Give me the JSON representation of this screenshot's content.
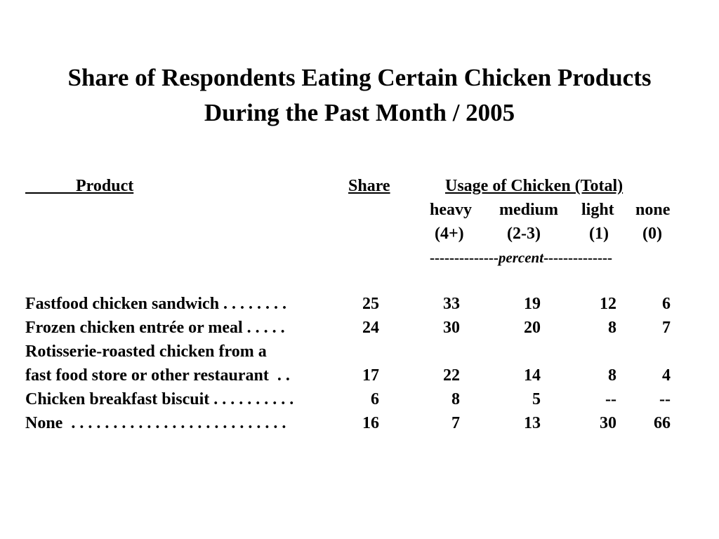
{
  "title": {
    "line1": "Share of Respondents Eating Certain Chicken Products",
    "line2": "During the Past Month / 2005"
  },
  "headers": {
    "product": "            Product",
    "share": "Share",
    "usage": "Usage of Chicken (Total)",
    "cols": [
      {
        "name": "heavy",
        "range": "(4+)"
      },
      {
        "name": "medium",
        "range": "(2-3)"
      },
      {
        "name": "light",
        "range": "(1)"
      },
      {
        "name": "none",
        "range": "(0)"
      }
    ],
    "dash_left": "--------------",
    "percent_label": "percent",
    "dash_right": "--------------"
  },
  "rows": [
    {
      "product": "Fastfood chicken sandwich . . . . . . . .",
      "share": "25",
      "heavy": "33",
      "medium": "19",
      "light": "12",
      "none": "6"
    },
    {
      "product": "Frozen chicken entrée or meal . . . . .",
      "share": "24",
      "heavy": "30",
      "medium": "20",
      "light": "8",
      "none": "7"
    },
    {
      "product": "Rotisserie-roasted chicken from a",
      "share": "",
      "heavy": "",
      "medium": "",
      "light": "",
      "none": ""
    },
    {
      "product": "fast food store or other restaurant  . .",
      "share": "17",
      "heavy": "22",
      "medium": "14",
      "light": "8",
      "none": "4"
    },
    {
      "product": "Chicken breakfast biscuit . . . . . . . . . .",
      "share": "6",
      "heavy": "8",
      "medium": "5",
      "light": "--",
      "none": "--"
    },
    {
      "product": "None  . . . . . . . . . . . . . . . . . . . . . . . . . .",
      "share": "16",
      "heavy": "7",
      "medium": "13",
      "light": "30",
      "none": "66"
    }
  ]
}
